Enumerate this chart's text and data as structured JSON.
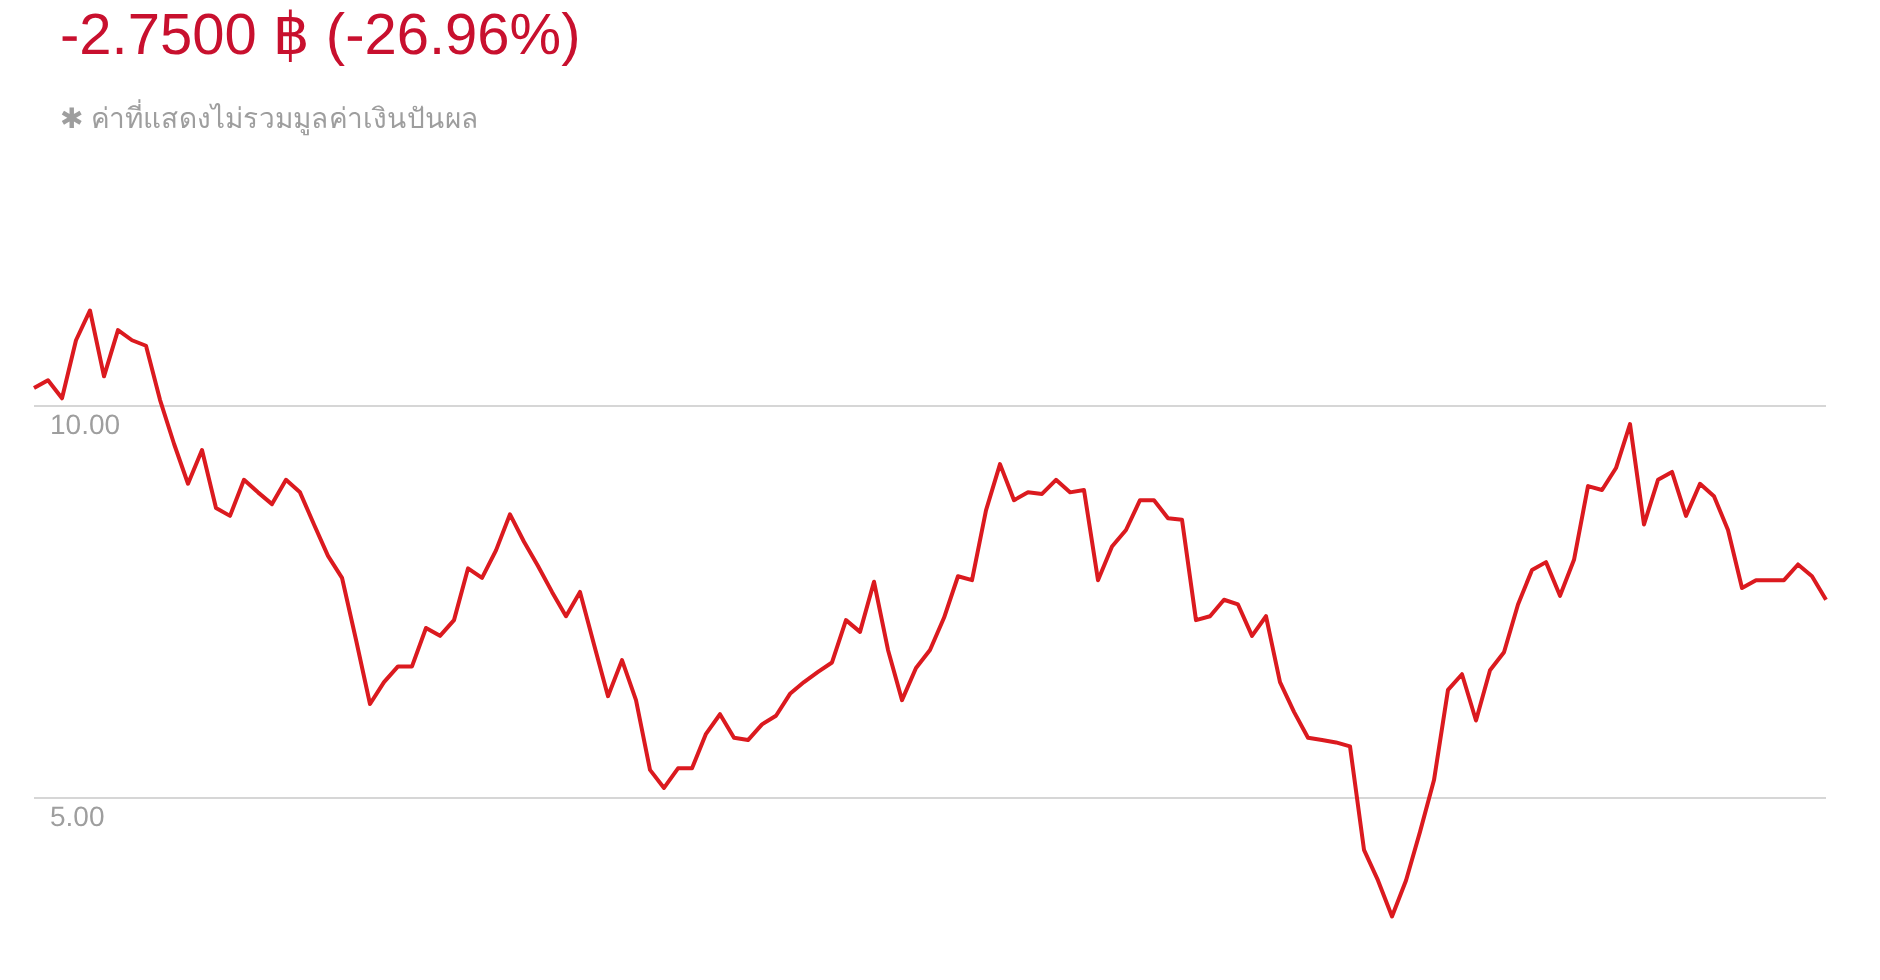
{
  "chart_data": {
    "type": "line",
    "title": "-2.7500 ฿ (-26.96%)",
    "subtitle": "✱ ค่าที่แสดงไม่รวมมูลค่าเงินปันผล",
    "categories": [
      null,
      null,
      null,
      null,
      null,
      null,
      null,
      null,
      null,
      null,
      null,
      null,
      null,
      null,
      null,
      null,
      null,
      null,
      null,
      null,
      null,
      null,
      null,
      null,
      null,
      null,
      null,
      null,
      null,
      null,
      null,
      null,
      null,
      null,
      null,
      null,
      null,
      null,
      null,
      null,
      null,
      null,
      null,
      null,
      null,
      null,
      null,
      null,
      null,
      null,
      null,
      null,
      null,
      null,
      null,
      null,
      null,
      null,
      null,
      null,
      null,
      null,
      null,
      null,
      null,
      null,
      null,
      null,
      null,
      null,
      null,
      null,
      null,
      null,
      null,
      null,
      null,
      null,
      null,
      null,
      null,
      null,
      null,
      null,
      null,
      null,
      null,
      null,
      null,
      null,
      null,
      null,
      null,
      null,
      null,
      null,
      null,
      null,
      null,
      null,
      null,
      null,
      null,
      null,
      null,
      null,
      null,
      null,
      null,
      null,
      null,
      null,
      null,
      null,
      null,
      null,
      null,
      null,
      null,
      null,
      null,
      null,
      null,
      null,
      null,
      null,
      null,
      null,
      null
    ],
    "series": [
      {
        "color": "#db1a1f",
        "values": [
          10.23,
          10.33,
          10.1,
          10.84,
          11.22,
          10.38,
          10.97,
          10.84,
          10.77,
          10.08,
          9.52,
          9.01,
          9.44,
          8.7,
          8.6,
          9.06,
          8.9,
          8.75,
          9.06,
          8.9,
          8.49,
          8.09,
          7.81,
          7.02,
          6.2,
          6.48,
          6.68,
          6.68,
          7.17,
          7.07,
          7.27,
          7.93,
          7.81,
          8.16,
          8.62,
          8.27,
          7.96,
          7.63,
          7.32,
          7.63,
          6.96,
          6.3,
          6.76,
          6.25,
          5.36,
          5.13,
          5.38,
          5.38,
          5.82,
          6.07,
          5.77,
          5.74,
          5.94,
          6.05,
          6.33,
          6.48,
          6.61,
          6.73,
          7.27,
          7.12,
          7.76,
          6.89,
          6.25,
          6.66,
          6.89,
          7.3,
          7.83,
          7.78,
          8.67,
          9.26,
          8.8,
          8.9,
          8.88,
          9.06,
          8.9,
          8.93,
          7.78,
          8.21,
          8.42,
          8.8,
          8.8,
          8.57,
          8.55,
          7.27,
          7.32,
          7.53,
          7.47,
          7.07,
          7.32,
          6.48,
          6.1,
          5.77,
          5.74,
          5.71,
          5.66,
          4.34,
          3.95,
          3.49,
          3.95,
          4.57,
          5.23,
          6.38,
          6.58,
          5.99,
          6.63,
          6.86,
          7.47,
          7.91,
          8.01,
          7.58,
          8.04,
          8.98,
          8.93,
          9.21,
          9.77,
          8.49,
          9.06,
          9.16,
          8.6,
          9.01,
          8.85,
          8.42,
          7.68,
          7.78,
          7.78,
          7.78,
          7.98,
          7.83,
          7.53
        ]
      }
    ],
    "ylim": [
      2.68,
      15.18
    ],
    "yticks": [
      {
        "value": 5,
        "label": "5.00"
      },
      {
        "value": 10,
        "label": "10.00"
      }
    ],
    "grid": "y",
    "tick_labels": "y",
    "legend": false,
    "marker": "none",
    "line_style": "solid"
  }
}
